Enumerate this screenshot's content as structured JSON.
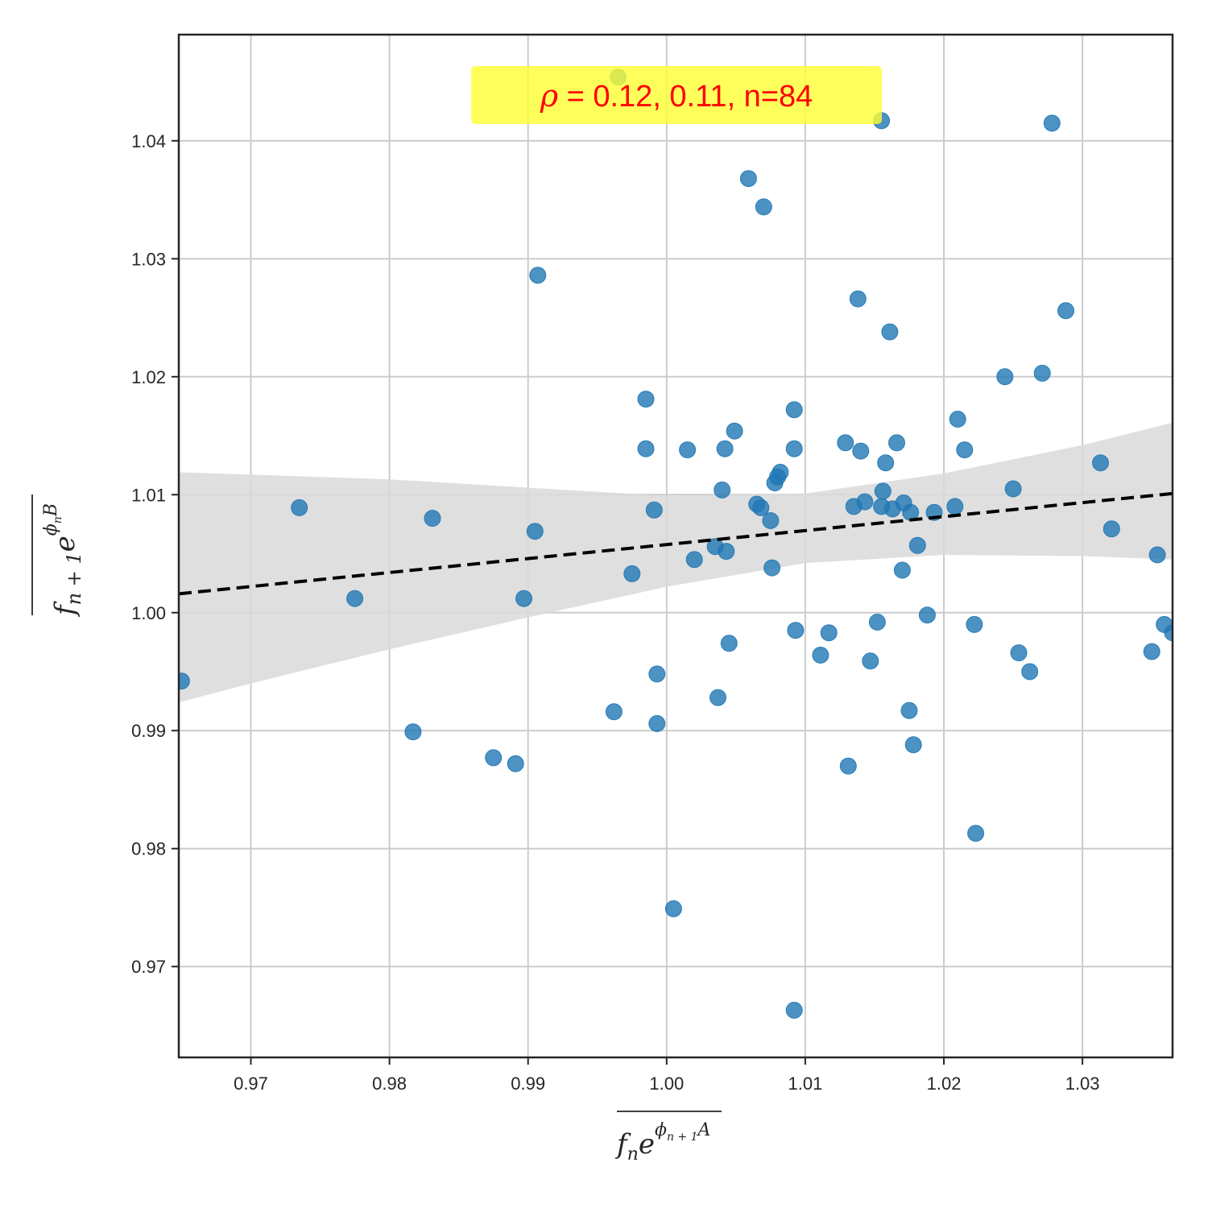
{
  "chart_data": {
    "type": "scatter",
    "title": "",
    "xlabel": "f_n e^{φ_{n+1} A}",
    "ylabel": "f_{n+1} e^{φ_n B}",
    "xlim": [
      0.9648,
      1.0365
    ],
    "ylim": [
      0.9623,
      1.049
    ],
    "x_ticks": [
      0.97,
      0.98,
      0.99,
      1.0,
      1.01,
      1.02,
      1.03
    ],
    "x_tick_labels": [
      "0.97",
      "0.98",
      "0.99",
      "1.00",
      "1.01",
      "1.02",
      "1.03"
    ],
    "y_ticks": [
      0.97,
      0.98,
      0.99,
      1.0,
      1.01,
      1.02,
      1.03,
      1.04
    ],
    "y_tick_labels": [
      "0.97",
      "0.98",
      "0.99",
      "1.00",
      "1.01",
      "1.02",
      "1.03",
      "1.04"
    ],
    "grid": true,
    "annotation": {
      "rho_symbol": "ρ",
      "text": " = 0.12, 0.11, n=84",
      "background": "#ffff33"
    },
    "series": [
      {
        "color": "#1f77b4",
        "points": [
          [
            0.965,
            0.9942
          ],
          [
            0.9735,
            1.0089
          ],
          [
            0.9775,
            1.0012
          ],
          [
            0.9817,
            0.9899
          ],
          [
            0.9831,
            1.008
          ],
          [
            0.9875,
            0.9877
          ],
          [
            0.9891,
            0.9872
          ],
          [
            0.9897,
            1.0012
          ],
          [
            0.9905,
            1.0069
          ],
          [
            0.9907,
            1.0286
          ],
          [
            0.9962,
            0.9916
          ],
          [
            0.9965,
            1.0454
          ],
          [
            0.9975,
            1.0033
          ],
          [
            0.9985,
            1.0181
          ],
          [
            0.9985,
            1.0139
          ],
          [
            0.9991,
            1.0087
          ],
          [
            0.9993,
            0.9948
          ],
          [
            0.9993,
            0.9906
          ],
          [
            1.0005,
            0.9749
          ],
          [
            1.0015,
            1.0138
          ],
          [
            1.002,
            1.0045
          ],
          [
            1.0035,
            1.0056
          ],
          [
            1.0037,
            0.9928
          ],
          [
            1.004,
            1.0104
          ],
          [
            1.0042,
            1.0139
          ],
          [
            1.0043,
            1.0052
          ],
          [
            1.0045,
            0.9974
          ],
          [
            1.0049,
            1.0154
          ],
          [
            1.0059,
            1.0368
          ],
          [
            1.0065,
            1.0092
          ],
          [
            1.0068,
            1.0089
          ],
          [
            1.007,
            1.0344
          ],
          [
            1.0075,
            1.0078
          ],
          [
            1.0076,
            1.0038
          ],
          [
            1.0078,
            1.011
          ],
          [
            1.008,
            1.0115
          ],
          [
            1.0082,
            1.0119
          ],
          [
            1.0092,
            1.0172
          ],
          [
            1.0092,
            1.0139
          ],
          [
            1.0093,
            0.9985
          ],
          [
            1.0092,
            0.9663
          ],
          [
            1.0111,
            0.9964
          ],
          [
            1.0117,
            0.9983
          ],
          [
            1.0129,
            1.0144
          ],
          [
            1.0131,
            0.987
          ],
          [
            1.0135,
            1.009
          ],
          [
            1.0138,
            1.0266
          ],
          [
            1.014,
            1.0137
          ],
          [
            1.0143,
            1.0094
          ],
          [
            1.0147,
            0.9959
          ],
          [
            1.0152,
            0.9992
          ],
          [
            1.0155,
            1.0417
          ],
          [
            1.0155,
            1.009
          ],
          [
            1.0156,
            1.0103
          ],
          [
            1.0158,
            1.0127
          ],
          [
            1.0161,
            1.0238
          ],
          [
            1.0163,
            1.0088
          ],
          [
            1.0166,
            1.0144
          ],
          [
            1.017,
            1.0036
          ],
          [
            1.0171,
            1.0093
          ],
          [
            1.0175,
            0.9917
          ],
          [
            1.0176,
            1.0085
          ],
          [
            1.0178,
            0.9888
          ],
          [
            1.0181,
            1.0057
          ],
          [
            1.0188,
            0.9998
          ],
          [
            1.0193,
            1.0085
          ],
          [
            1.0208,
            1.009
          ],
          [
            1.021,
            1.0164
          ],
          [
            1.0215,
            1.0138
          ],
          [
            1.0222,
            0.999
          ],
          [
            1.0223,
            0.9813
          ],
          [
            1.0244,
            1.02
          ],
          [
            1.025,
            1.0105
          ],
          [
            1.0254,
            0.9966
          ],
          [
            1.0262,
            0.995
          ],
          [
            1.0271,
            1.0203
          ],
          [
            1.0278,
            1.0415
          ],
          [
            1.0288,
            1.0256
          ],
          [
            1.0313,
            1.0127
          ],
          [
            1.0321,
            1.0071
          ],
          [
            1.035,
            0.9967
          ],
          [
            1.0354,
            1.0049
          ],
          [
            1.0359,
            0.999
          ],
          [
            1.0365,
            0.9983
          ]
        ]
      }
    ],
    "regression": {
      "color": "#000000",
      "style": "dashed",
      "line": [
        [
          0.9648,
          1.0016
        ],
        [
          1.0365,
          1.0101
        ]
      ],
      "ci_band_color": "#d9d9d9",
      "ci_x": [
        0.9648,
        0.97,
        0.98,
        0.99,
        1.0,
        1.01,
        1.02,
        1.03,
        1.0365
      ],
      "ci_upper": [
        1.0119,
        1.0117,
        1.0113,
        1.0106,
        1.0099,
        1.0101,
        1.0118,
        1.0142,
        1.0161
      ],
      "ci_lower": [
        0.9924,
        0.994,
        0.9969,
        0.9996,
        1.0022,
        1.0042,
        1.0049,
        1.0048,
        1.0045
      ]
    }
  }
}
